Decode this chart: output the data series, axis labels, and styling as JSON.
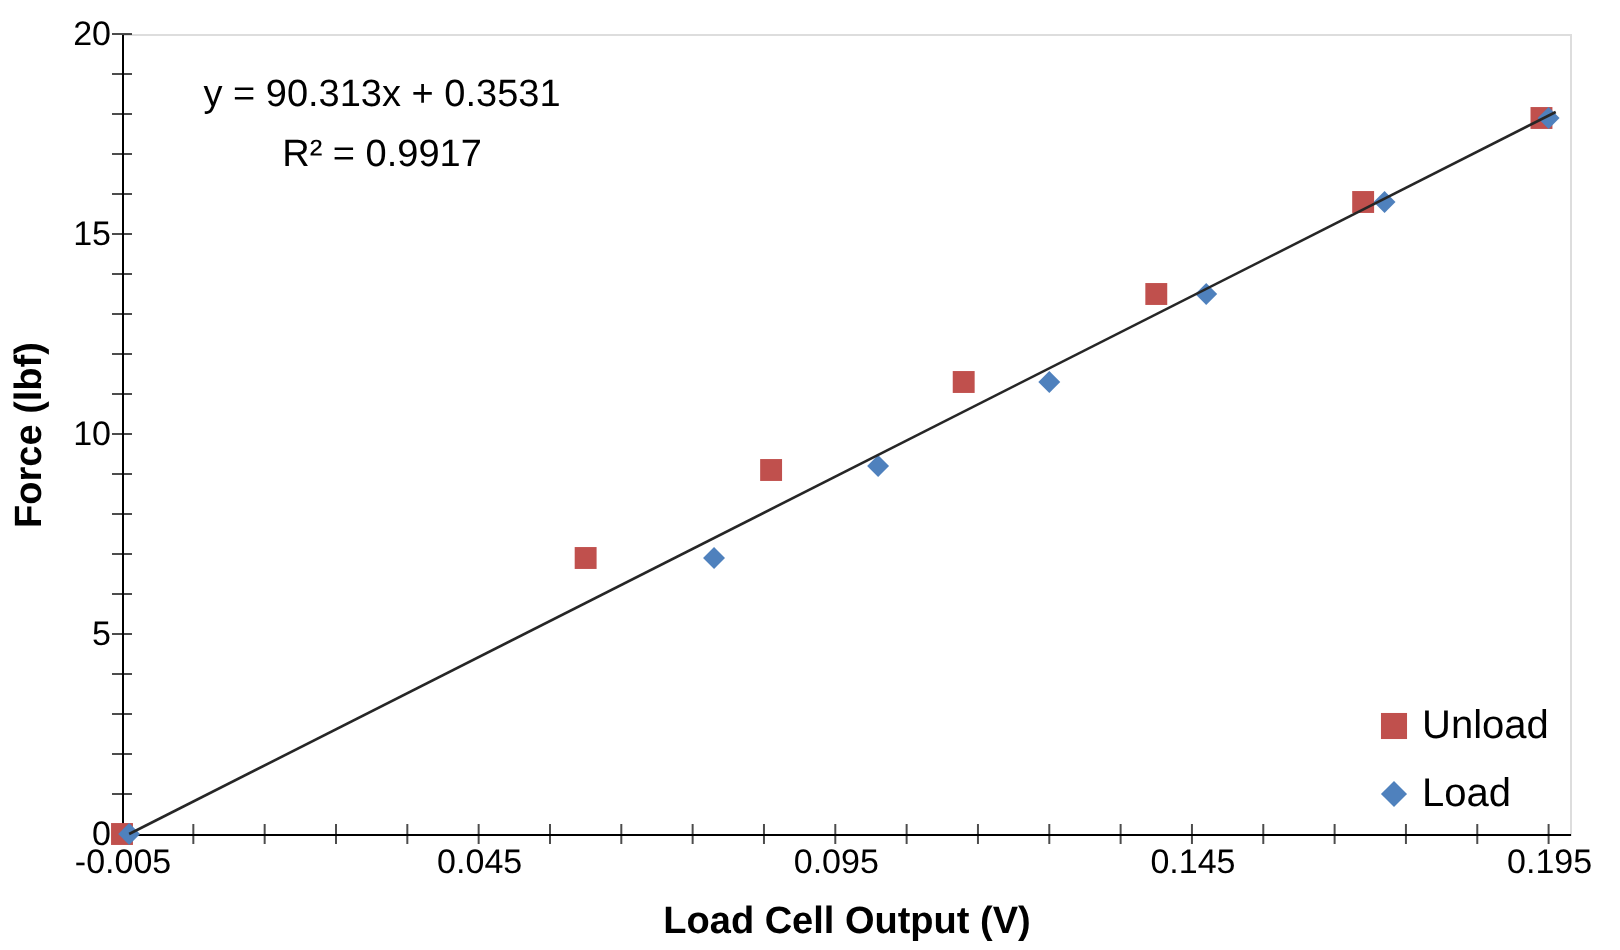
{
  "chart_data": {
    "type": "scatter",
    "xlabel": "Load Cell Output (V)",
    "ylabel": "Force (lbf)",
    "xlim": [
      -0.005,
      0.198
    ],
    "ylim": [
      0,
      20
    ],
    "xticks": [
      -0.005,
      {
        "value": 0.005,
        "label": null
      },
      {
        "value": 0.015,
        "label": null
      },
      {
        "value": 0.025,
        "label": null
      },
      {
        "value": 0.035,
        "label": null
      },
      0.045,
      {
        "value": 0.055,
        "label": null
      },
      {
        "value": 0.065,
        "label": null
      },
      {
        "value": 0.075,
        "label": null
      },
      {
        "value": 0.085,
        "label": null
      },
      0.095,
      {
        "value": 0.105,
        "label": null
      },
      {
        "value": 0.115,
        "label": null
      },
      {
        "value": 0.125,
        "label": null
      },
      {
        "value": 0.135,
        "label": null
      },
      0.145,
      {
        "value": 0.155,
        "label": null
      },
      {
        "value": 0.165,
        "label": null
      },
      {
        "value": 0.175,
        "label": null
      },
      {
        "value": 0.185,
        "label": null
      },
      0.195
    ],
    "yticks": [
      0,
      {
        "value": 1,
        "label": null
      },
      {
        "value": 2,
        "label": null
      },
      {
        "value": 3,
        "label": null
      },
      {
        "value": 4,
        "label": null
      },
      5,
      {
        "value": 6,
        "label": null
      },
      {
        "value": 7,
        "label": null
      },
      {
        "value": 8,
        "label": null
      },
      {
        "value": 9,
        "label": null
      },
      10,
      {
        "value": 11,
        "label": null
      },
      {
        "value": 12,
        "label": null
      },
      {
        "value": 13,
        "label": null
      },
      {
        "value": 14,
        "label": null
      },
      15,
      {
        "value": 16,
        "label": null
      },
      {
        "value": 17,
        "label": null
      },
      {
        "value": 18,
        "label": null
      },
      {
        "value": 19,
        "label": null
      },
      20
    ],
    "series": [
      {
        "name": "Unload",
        "marker": "square",
        "color": "#c0504d",
        "x": [
          -0.005,
          0.06,
          0.086,
          0.113,
          0.14,
          0.169,
          0.194
        ],
        "values": [
          0,
          6.9,
          9.1,
          11.3,
          13.5,
          15.8,
          17.9
        ]
      },
      {
        "name": "Load",
        "marker": "diamond",
        "color": "#4f81bd",
        "x": [
          -0.004,
          0.078,
          0.101,
          0.125,
          0.147,
          0.172,
          0.195
        ],
        "values": [
          0,
          6.9,
          9.2,
          11.3,
          13.5,
          15.8,
          17.9
        ]
      },
      {
        "type": "line",
        "marker": "none",
        "line_style": "solid",
        "color": "#262626",
        "x": [
          -0.004,
          0.196
        ],
        "values": [
          0.0,
          18.05
        ]
      }
    ],
    "annotations": [
      "y = 90.313x + 0.3531",
      "R² = 0.9917"
    ],
    "legend": "bottom right",
    "grid": false
  }
}
